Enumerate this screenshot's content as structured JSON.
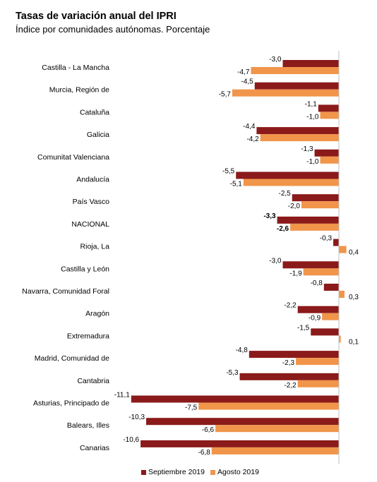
{
  "title": "Tasas de variación anual del IPRI",
  "subtitle": "Índice por comunidades autónomas. Porcentaje",
  "colors": {
    "series1": "#8B1A1A",
    "series2": "#F0954A"
  },
  "chart_data": {
    "type": "bar",
    "orientation": "horizontal",
    "categories": [
      "Castilla - La Mancha",
      "Murcia, Región de",
      "Cataluña",
      "Galicia",
      "Comunitat Valenciana",
      "Andalucía",
      "País Vasco",
      "NACIONAL",
      "Rioja, La",
      "Castilla y León",
      "Navarra, Comunidad Foral",
      "Aragón",
      "Extremadura",
      "Madrid, Comunidad de",
      "Cantabria",
      "Asturias, Principado de",
      "Balears, Illes",
      "Canarias"
    ],
    "series": [
      {
        "name": "Septiembre 2019",
        "values": [
          -3.0,
          -4.5,
          -1.1,
          -4.4,
          -1.3,
          -5.5,
          -2.5,
          -3.3,
          -0.3,
          -3.0,
          -0.8,
          -2.2,
          -1.5,
          -4.8,
          -5.3,
          -11.1,
          -10.3,
          -10.6
        ]
      },
      {
        "name": "Agosto 2019",
        "values": [
          -4.7,
          -5.7,
          -1.0,
          -4.2,
          -1.0,
          -5.1,
          -2.0,
          -2.6,
          0.4,
          -1.9,
          0.3,
          -0.9,
          0.1,
          -2.3,
          -2.2,
          -7.5,
          -6.6,
          -6.8
        ]
      }
    ],
    "labels": [
      [
        "-3,0",
        "-4,7"
      ],
      [
        "-4,5",
        "-5,7"
      ],
      [
        "-1,1",
        "-1,0"
      ],
      [
        "-4,4",
        "-4,2"
      ],
      [
        "-1,3",
        "-1,0"
      ],
      [
        "-5,5",
        "-5,1"
      ],
      [
        "-2,5",
        "-2,0"
      ],
      [
        "-3,3",
        "-2,6"
      ],
      [
        "-0,3",
        "0,4"
      ],
      [
        "-3,0",
        "-1,9"
      ],
      [
        "-0,8",
        "0,3"
      ],
      [
        "-2,2",
        "-0,9"
      ],
      [
        "-1,5",
        "0,1"
      ],
      [
        "-4,8",
        "-2,3"
      ],
      [
        "-5,3",
        "-2,2"
      ],
      [
        "-11,1",
        "-7,5"
      ],
      [
        "-10,3",
        "-6,6"
      ],
      [
        "-10,6",
        "-6,8"
      ]
    ],
    "highlight_category": "NACIONAL",
    "xlim": [
      -11.1,
      0.4
    ],
    "grid": false,
    "legend_position": "bottom"
  }
}
